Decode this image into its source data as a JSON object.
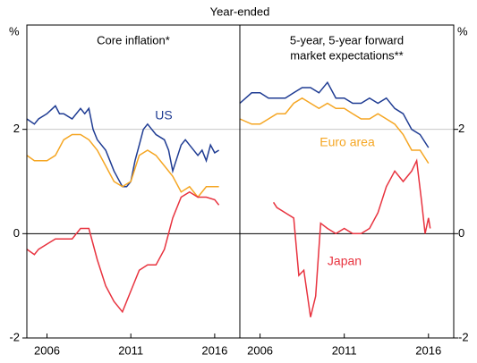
{
  "header": {
    "subtitle": "Year-ended"
  },
  "chart_data": [
    {
      "type": "line",
      "title": [
        "Core inflation*"
      ],
      "ylabel": "%",
      "xlim": [
        2004.8,
        2017.5
      ],
      "xticks": [
        2006,
        2011,
        2016
      ],
      "ylim": [
        -2,
        4
      ],
      "yticks": [
        -2,
        0,
        2
      ],
      "grid": true,
      "series": [
        {
          "name": "US",
          "color": "#1f3c93",
          "x": [
            2004.8,
            2005.25,
            2005.5,
            2006,
            2006.5,
            2006.75,
            2007,
            2007.5,
            2008,
            2008.25,
            2008.5,
            2008.75,
            2009,
            2009.5,
            2009.75,
            2010,
            2010.5,
            2010.75,
            2011,
            2011.25,
            2011.5,
            2011.75,
            2012,
            2012.25,
            2012.5,
            2013,
            2013.25,
            2013.5,
            2014,
            2014.25,
            2014.5,
            2015,
            2015.25,
            2015.5,
            2015.75,
            2016,
            2016.25
          ],
          "values": [
            2.2,
            2.1,
            2.2,
            2.3,
            2.45,
            2.3,
            2.3,
            2.2,
            2.4,
            2.3,
            2.4,
            2.0,
            1.8,
            1.6,
            1.4,
            1.2,
            0.9,
            0.9,
            1.0,
            1.4,
            1.7,
            2.0,
            2.1,
            2.0,
            1.9,
            1.8,
            1.6,
            1.2,
            1.7,
            1.8,
            1.7,
            1.5,
            1.6,
            1.4,
            1.7,
            1.55,
            1.6
          ]
        },
        {
          "color": "#f5a623",
          "x": [
            2004.8,
            2005.25,
            2005.5,
            2006,
            2006.5,
            2007,
            2007.5,
            2008,
            2008.5,
            2009,
            2009.5,
            2010,
            2010.5,
            2011,
            2011.5,
            2012,
            2012.5,
            2013,
            2013.5,
            2014,
            2014.5,
            2015,
            2015.5,
            2016,
            2016.25
          ],
          "values": [
            1.5,
            1.4,
            1.4,
            1.4,
            1.5,
            1.8,
            1.9,
            1.9,
            1.8,
            1.6,
            1.3,
            1.0,
            0.9,
            1.0,
            1.5,
            1.6,
            1.5,
            1.3,
            1.1,
            0.8,
            0.9,
            0.7,
            0.9,
            0.9,
            0.9
          ]
        },
        {
          "color": "#e8333f",
          "x": [
            2004.8,
            2005.25,
            2005.5,
            2006,
            2006.5,
            2007,
            2007.5,
            2008,
            2008.5,
            2009,
            2009.5,
            2010,
            2010.5,
            2011,
            2011.5,
            2012,
            2012.5,
            2013,
            2013.5,
            2014,
            2014.5,
            2015,
            2015.5,
            2016,
            2016.25
          ],
          "values": [
            -0.3,
            -0.4,
            -0.3,
            -0.2,
            -0.1,
            -0.1,
            -0.1,
            0.1,
            0.1,
            -0.5,
            -1.0,
            -1.3,
            -1.5,
            -1.1,
            -0.7,
            -0.6,
            -0.6,
            -0.3,
            0.3,
            0.7,
            0.8,
            0.7,
            0.7,
            0.65,
            0.55
          ]
        }
      ]
    },
    {
      "type": "line",
      "title": [
        "5-year, 5-year forward",
        "market expectations**"
      ],
      "ylabel": "%",
      "xlim": [
        2004.8,
        2017.5
      ],
      "xticks": [
        2006,
        2011,
        2016
      ],
      "ylim": [
        -2,
        4
      ],
      "yticks": [
        -2,
        0,
        2
      ],
      "grid": true,
      "series": [
        {
          "color": "#1f3c93",
          "x": [
            2004.8,
            2005.5,
            2006,
            2006.5,
            2007,
            2007.5,
            2008,
            2008.5,
            2009,
            2009.5,
            2010,
            2010.5,
            2011,
            2011.5,
            2012,
            2012.5,
            2013,
            2013.5,
            2014,
            2014.5,
            2015,
            2015.5,
            2016
          ],
          "values": [
            2.5,
            2.7,
            2.7,
            2.6,
            2.6,
            2.6,
            2.7,
            2.8,
            2.8,
            2.7,
            2.9,
            2.6,
            2.6,
            2.5,
            2.5,
            2.6,
            2.5,
            2.6,
            2.4,
            2.3,
            2.0,
            1.9,
            1.65
          ]
        },
        {
          "name": "Euro area",
          "color": "#f5a623",
          "x": [
            2004.8,
            2005.5,
            2006,
            2006.5,
            2007,
            2007.5,
            2008,
            2008.5,
            2009,
            2009.5,
            2010,
            2010.5,
            2011,
            2011.5,
            2012,
            2012.5,
            2013,
            2013.5,
            2014,
            2014.5,
            2015,
            2015.5,
            2016
          ],
          "values": [
            2.2,
            2.1,
            2.1,
            2.2,
            2.3,
            2.3,
            2.5,
            2.6,
            2.5,
            2.4,
            2.5,
            2.4,
            2.4,
            2.3,
            2.2,
            2.2,
            2.3,
            2.2,
            2.1,
            1.9,
            1.6,
            1.6,
            1.35
          ]
        },
        {
          "name": "Japan",
          "color": "#e8333f",
          "x": [
            2006.8,
            2007,
            2007.5,
            2008,
            2008.3,
            2008.6,
            2009,
            2009.3,
            2009.6,
            2010,
            2010.5,
            2011,
            2011.5,
            2012,
            2012.5,
            2013,
            2013.5,
            2014,
            2014.5,
            2015,
            2015.3,
            2015.6,
            2015.8,
            2016,
            2016.1
          ],
          "values": [
            0.6,
            0.5,
            0.4,
            0.3,
            -0.8,
            -0.7,
            -1.6,
            -1.2,
            0.2,
            0.1,
            0.0,
            0.1,
            0.0,
            0.0,
            0.1,
            0.4,
            0.9,
            1.2,
            1.0,
            1.2,
            1.4,
            0.6,
            0.0,
            0.3,
            0.1
          ]
        }
      ]
    }
  ]
}
